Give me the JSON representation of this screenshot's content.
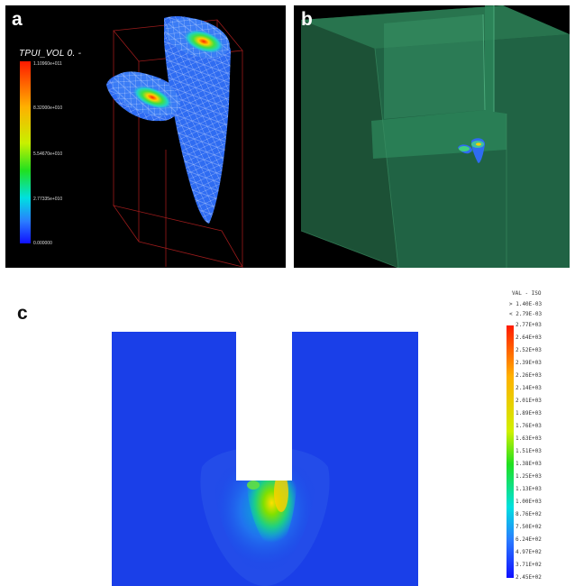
{
  "panel_a": {
    "label": "a",
    "colorbar": {
      "title": "TPUI_VOL 0. -",
      "ticks": [
        "1.10960e+011",
        "8.32000e+010",
        "5.54670e+010",
        "2.77335e+010",
        "0.000000"
      ]
    }
  },
  "panel_b": {
    "label": "b"
  },
  "panel_c": {
    "label": "c",
    "legend": {
      "header": [
        "VAL - ISO",
        "> 1.40E-03",
        "< 2.79E-03"
      ],
      "ticks": [
        "2.77E+03",
        "2.64E+03",
        "2.52E+03",
        "2.39E+03",
        "2.26E+03",
        "2.14E+03",
        "2.01E+03",
        "1.89E+03",
        "1.76E+03",
        "1.63E+03",
        "1.51E+03",
        "1.38E+03",
        "1.25E+03",
        "1.13E+03",
        "1.00E+03",
        "8.76E+02",
        "7.50E+02",
        "6.24E+02",
        "4.97E+02",
        "3.71E+02",
        "2.45E+02"
      ]
    }
  },
  "colors": {
    "background_dark": "#000000",
    "field_blue": "#1a3fe8",
    "mesh_blue": "#2f6cf2",
    "box_red": "#9b1b1b",
    "translucent_green": "#2f8a5a"
  }
}
